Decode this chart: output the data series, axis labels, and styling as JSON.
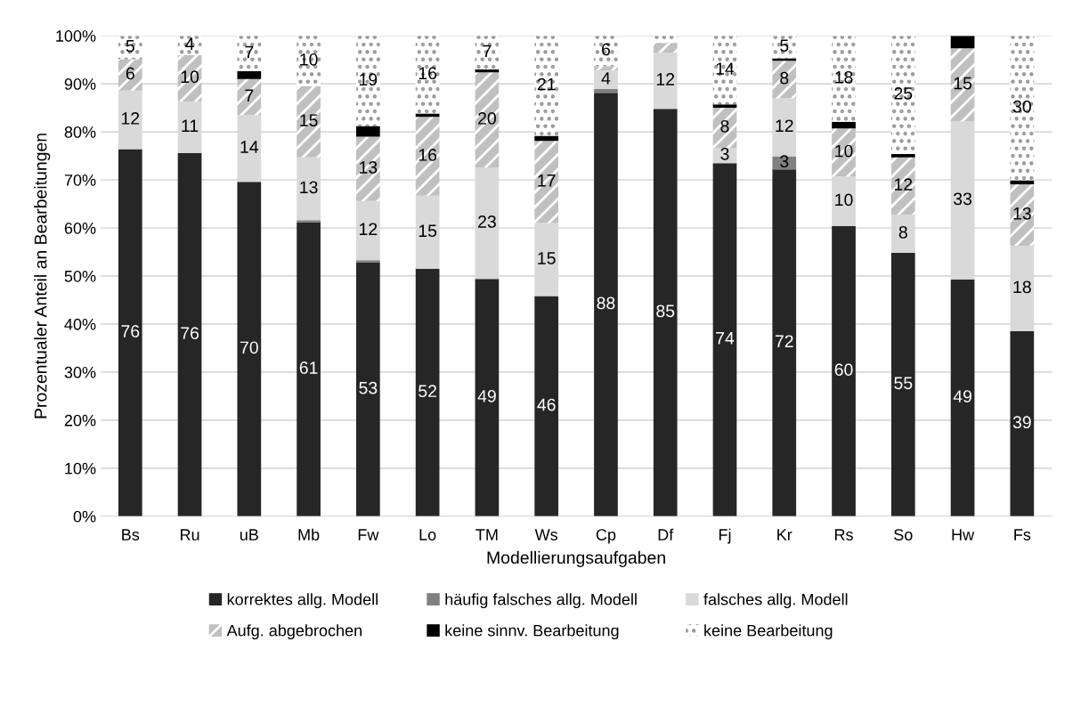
{
  "chart_data": {
    "type": "bar",
    "stacked": true,
    "xlabel": "Modellierungsaufgaben",
    "ylabel": "Prozentualer Anteil an Bearbeitungen",
    "categories": [
      "Bs",
      "Ru",
      "uB",
      "Mb",
      "Fw",
      "Lo",
      "TM",
      "Ws",
      "Cp",
      "Df",
      "Fj",
      "Kr",
      "Rs",
      "So",
      "Hw",
      "Fs"
    ],
    "ylim": [
      0,
      100
    ],
    "yticks": [
      {
        "value": 0,
        "label": "0%"
      },
      {
        "value": 10,
        "label": "10%"
      },
      {
        "value": 20,
        "label": "20%"
      },
      {
        "value": 30,
        "label": "30%"
      },
      {
        "value": 40,
        "label": "40%"
      },
      {
        "value": 50,
        "label": "50%"
      },
      {
        "value": 60,
        "label": "60%"
      },
      {
        "value": 70,
        "label": "70%"
      },
      {
        "value": 80,
        "label": "80%"
      },
      {
        "value": 90,
        "label": "90%"
      },
      {
        "value": 100,
        "label": "100%"
      }
    ],
    "grid": "y",
    "legend": "bottom",
    "series": [
      {
        "name": "korrektes allg. Modell",
        "color": "#262626",
        "values": [
          76.4,
          75.6,
          69.6,
          61.2,
          52.8,
          51.5,
          49.4,
          45.8,
          88.1,
          84.8,
          73.5,
          72.2,
          60.4,
          54.8,
          49.3,
          38.5
        ],
        "value_labels": [
          "76",
          "76",
          "70",
          "61",
          "53",
          "52",
          "49",
          "46",
          "88",
          "85",
          "74",
          "72",
          "60",
          "55",
          "49",
          "39"
        ]
      },
      {
        "name": "häufig falsches allg. Modell",
        "color": "#808080",
        "values": [
          0,
          0,
          0,
          0.4,
          0.5,
          0,
          0,
          0,
          0.8,
          0,
          0,
          2.7,
          0,
          0,
          0,
          0
        ],
        "value_labels": [
          null,
          null,
          null,
          null,
          null,
          null,
          null,
          null,
          null,
          null,
          null,
          "3",
          null,
          null,
          null,
          null
        ]
      },
      {
        "name": "falsches allg. Modell",
        "color": "#d9d9d9",
        "values": [
          12.2,
          10.7,
          13.9,
          13.1,
          12.3,
          15.2,
          23.2,
          15.2,
          3.9,
          11.7,
          3.2,
          12.1,
          10.3,
          8.0,
          32.9,
          17.8
        ],
        "value_labels": [
          "12",
          "11",
          "14",
          "13",
          "12",
          "15",
          "23",
          "15",
          "4",
          "12",
          "3",
          "12",
          "10",
          "8",
          "33",
          "18"
        ]
      },
      {
        "name": "Aufg. abgebrochen",
        "color": "#c0c0c0",
        "values": [
          6.5,
          9.7,
          7.5,
          14.8,
          13.4,
          16.4,
          19.8,
          17.1,
          0.9,
          2.0,
          8.3,
          7.8,
          10.0,
          11.9,
          15.2,
          12.8
        ],
        "value_labels": [
          "6",
          "10",
          "7",
          "15",
          "13",
          "16",
          "20",
          "17",
          null,
          null,
          "8",
          "8",
          "10",
          "12",
          "15",
          "13"
        ]
      },
      {
        "name": "keine sinnv. Bearbeitung",
        "color": "#000000",
        "values": [
          0,
          0,
          1.6,
          0,
          2.2,
          0.7,
          0.6,
          1.1,
          0,
          0,
          0.7,
          0.5,
          1.4,
          0.7,
          2.6,
          0.8
        ],
        "value_labels": [
          null,
          null,
          null,
          null,
          null,
          null,
          null,
          null,
          null,
          null,
          null,
          null,
          null,
          null,
          null,
          null
        ]
      },
      {
        "name": "keine Bearbeitung",
        "color": "#ffffff",
        "values": [
          4.9,
          4.0,
          7.4,
          10.5,
          18.8,
          16.2,
          7.0,
          20.8,
          6.3,
          1.5,
          14.3,
          4.7,
          17.9,
          24.6,
          0,
          30.1
        ],
        "value_labels": [
          "5",
          "4",
          "7",
          "10",
          "19",
          "16",
          "7",
          "21",
          "6",
          null,
          "14",
          "5",
          "18",
          "25",
          null,
          "30"
        ]
      }
    ]
  }
}
